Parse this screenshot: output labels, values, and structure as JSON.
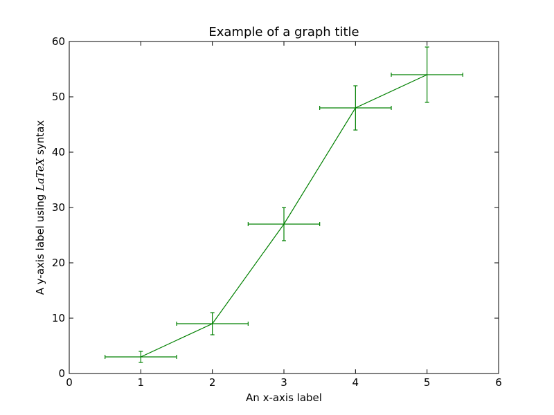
{
  "chart_data": {
    "type": "line",
    "title": "Example of a graph title",
    "xlabel": "An x-axis label",
    "ylabel_prefix": "A y-axis label using ",
    "ylabel_latex": "LaTeX",
    "ylabel_suffix": " syntax",
    "xlim": [
      0,
      6
    ],
    "ylim": [
      0,
      60
    ],
    "xticks": [
      0,
      1,
      2,
      3,
      4,
      5,
      6
    ],
    "yticks": [
      0,
      10,
      20,
      30,
      40,
      50,
      60
    ],
    "grid": false,
    "series": [
      {
        "color": "#008000",
        "x": [
          1,
          2,
          3,
          4,
          5
        ],
        "y": [
          3,
          9,
          27,
          48,
          54
        ],
        "xerr": [
          0.5,
          0.5,
          0.5,
          0.5,
          0.5
        ],
        "yerr": [
          1,
          2,
          3,
          4,
          5
        ]
      }
    ]
  }
}
